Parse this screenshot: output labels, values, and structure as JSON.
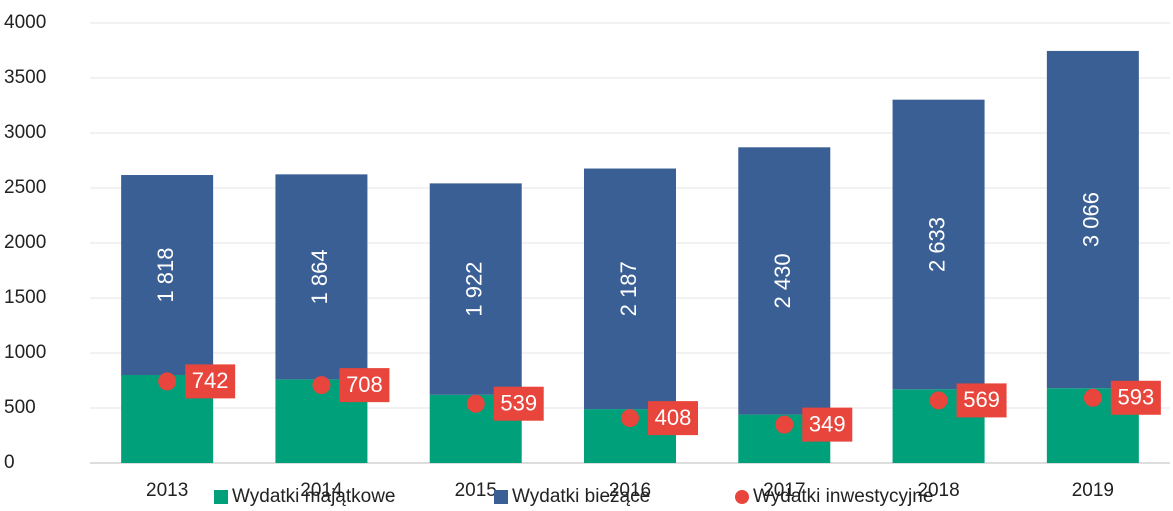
{
  "chart_data": {
    "type": "bar",
    "stacked": true,
    "categories": [
      "2013",
      "2014",
      "2015",
      "2016",
      "2017",
      "2018",
      "2019"
    ],
    "series": [
      {
        "name": "Wydatki majątkowe",
        "color": "#00a07a",
        "values": [
          800,
          760,
          620,
          490,
          440,
          670,
          680
        ]
      },
      {
        "name": "Wydatki bieżące",
        "color": "#3a5f94",
        "values": [
          1818,
          1864,
          1922,
          2187,
          2430,
          2633,
          3066
        ],
        "value_labels": [
          "1 818",
          "1 864",
          "1 922",
          "2 187",
          "2 430",
          "2 633",
          "3 066"
        ]
      },
      {
        "name": "Wydatki inwestycyjne",
        "type": "scatter",
        "color": "#e8453c",
        "values": [
          742,
          708,
          539,
          408,
          349,
          569,
          593
        ]
      }
    ],
    "ylim": [
      0,
      4000
    ],
    "yticks": [
      0,
      500,
      1000,
      1500,
      2000,
      2500,
      3000,
      3500,
      4000
    ],
    "grid": true,
    "legend": "bottom"
  }
}
